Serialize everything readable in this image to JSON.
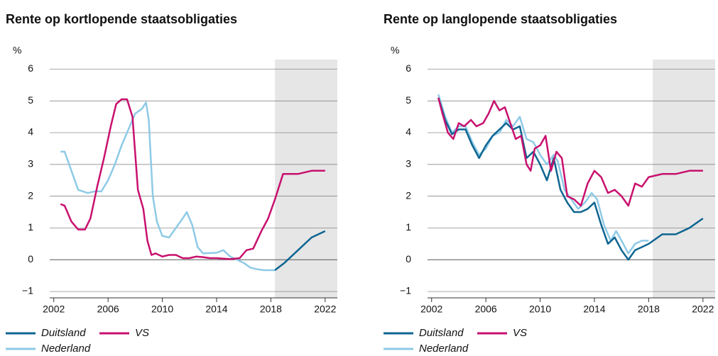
{
  "chart_data": [
    {
      "type": "line",
      "title": "Rente op kortlopende staatsobligaties",
      "y_label": "%",
      "xlim": [
        2001.7,
        2022.9
      ],
      "xticks": [
        2002,
        2006,
        2010,
        2014,
        2018,
        2022
      ],
      "ylim": [
        -1.2,
        6.3
      ],
      "yticks": [
        {
          "value": -1,
          "label": "−1"
        },
        0,
        1,
        2,
        3,
        4,
        5,
        6
      ],
      "grid": true,
      "forecast_region": [
        2018.3,
        2022.9
      ],
      "shade_color": "#e6e6e6",
      "series": [
        {
          "name": "Nederland",
          "color": "#8ecae6",
          "x": [
            2002.5,
            2002.8,
            2003.3,
            2003.8,
            2004.5,
            2005,
            2005.5,
            2006,
            2006.5,
            2007,
            2007.5,
            2008,
            2008.5,
            2008.8,
            2009,
            2009.3,
            2009.6,
            2010,
            2010.5,
            2011,
            2011.5,
            2011.8,
            2012.2,
            2012.6,
            2013,
            2014,
            2014.5,
            2015,
            2015.5,
            2016,
            2016.5,
            2017,
            2017.5,
            2018.3
          ],
          "values": [
            3.4,
            3.4,
            2.8,
            2.2,
            2.1,
            2.15,
            2.15,
            2.5,
            3.0,
            3.6,
            4.1,
            4.6,
            4.75,
            4.95,
            4.4,
            2.0,
            1.2,
            0.75,
            0.7,
            1.0,
            1.3,
            1.5,
            1.1,
            0.4,
            0.2,
            0.22,
            0.3,
            0.1,
            0.0,
            -0.1,
            -0.25,
            -0.3,
            -0.33,
            -0.33
          ]
        },
        {
          "name": "Duitsland",
          "color": "#0e6591",
          "x": [
            2018.3,
            2019,
            2020,
            2021,
            2022
          ],
          "values": [
            -0.33,
            -0.1,
            0.3,
            0.7,
            0.9
          ]
        },
        {
          "name": "VS",
          "color": "#c8106e",
          "x": [
            2002.5,
            2002.8,
            2003.3,
            2003.8,
            2004.3,
            2004.7,
            2005.2,
            2005.7,
            2006.2,
            2006.6,
            2007,
            2007.4,
            2007.8,
            2008.2,
            2008.6,
            2008.9,
            2009.2,
            2009.5,
            2010,
            2010.5,
            2011,
            2011.5,
            2012,
            2012.5,
            2013,
            2013.5,
            2014,
            2015,
            2015.7,
            2016.2,
            2016.7,
            2017.3,
            2017.8,
            2018.3,
            2018.9,
            2020,
            2021,
            2022
          ],
          "values": [
            1.75,
            1.7,
            1.2,
            0.95,
            0.95,
            1.3,
            2.3,
            3.2,
            4.2,
            4.9,
            5.05,
            5.05,
            4.5,
            2.2,
            1.6,
            0.6,
            0.15,
            0.2,
            0.1,
            0.15,
            0.15,
            0.05,
            0.05,
            0.1,
            0.08,
            0.05,
            0.05,
            0.02,
            0.05,
            0.3,
            0.35,
            0.9,
            1.3,
            1.9,
            2.7,
            2.7,
            2.8,
            2.8
          ]
        }
      ]
    },
    {
      "type": "line",
      "title": "Rente op langlopende staatsobligaties",
      "y_label": "%",
      "xlim": [
        2001.7,
        2022.9
      ],
      "xticks": [
        2002,
        2006,
        2010,
        2014,
        2018,
        2022
      ],
      "ylim": [
        -1.2,
        6.3
      ],
      "yticks": [
        {
          "value": -1,
          "label": "−1"
        },
        0,
        1,
        2,
        3,
        4,
        5,
        6
      ],
      "grid": true,
      "forecast_region": [
        2018.3,
        2022.9
      ],
      "shade_color": "#e6e6e6",
      "series": [
        {
          "name": "Nederland",
          "color": "#8ecae6",
          "x": [
            2002.5,
            2003,
            2003.5,
            2004,
            2004.5,
            2005,
            2005.5,
            2006,
            2006.5,
            2007,
            2007.5,
            2008,
            2008.5,
            2009,
            2009.5,
            2010,
            2010.5,
            2011,
            2011.3,
            2011.8,
            2012.3,
            2012.8,
            2013.3,
            2013.8,
            2014.2,
            2014.7,
            2015.2,
            2015.6,
            2016,
            2016.5,
            2017,
            2017.5,
            2018
          ],
          "values": [
            5.2,
            4.5,
            4.0,
            4.2,
            4.2,
            3.7,
            3.3,
            3.5,
            3.9,
            4.0,
            4.4,
            4.2,
            4.5,
            3.8,
            3.7,
            3.3,
            3.0,
            3.3,
            3.1,
            2.2,
            1.9,
            1.6,
            1.8,
            2.1,
            1.9,
            1.1,
            0.6,
            0.9,
            0.6,
            0.2,
            0.5,
            0.6,
            0.6
          ]
        },
        {
          "name": "Duitsland",
          "color": "#0e6591",
          "x": [
            2002.5,
            2003,
            2003.5,
            2004,
            2004.5,
            2005,
            2005.5,
            2006,
            2006.5,
            2007,
            2007.5,
            2008,
            2008.5,
            2009,
            2009.5,
            2010,
            2010.5,
            2011,
            2011.5,
            2012,
            2012.5,
            2013,
            2013.5,
            2014,
            2014.5,
            2015,
            2015.5,
            2016,
            2016.5,
            2017,
            2017.5,
            2018,
            2019,
            2020,
            2021,
            2022
          ],
          "values": [
            5.1,
            4.4,
            3.95,
            4.1,
            4.1,
            3.6,
            3.2,
            3.6,
            3.9,
            4.1,
            4.3,
            4.1,
            4.2,
            3.2,
            3.4,
            3.0,
            2.5,
            3.2,
            2.2,
            1.8,
            1.5,
            1.5,
            1.6,
            1.8,
            1.1,
            0.5,
            0.7,
            0.3,
            0.0,
            0.3,
            0.4,
            0.5,
            0.8,
            0.8,
            1.0,
            1.3
          ]
        },
        {
          "name": "VS",
          "color": "#c8106e",
          "x": [
            2002.5,
            2002.8,
            2003.2,
            2003.6,
            2004,
            2004.4,
            2004.9,
            2005.3,
            2005.8,
            2006.2,
            2006.6,
            2007,
            2007.4,
            2007.8,
            2008.2,
            2008.6,
            2009,
            2009.3,
            2009.6,
            2010,
            2010.4,
            2010.8,
            2011.2,
            2011.6,
            2012,
            2012.5,
            2013,
            2013.5,
            2014,
            2014.5,
            2015,
            2015.5,
            2016,
            2016.5,
            2017,
            2017.5,
            2018,
            2019,
            2020,
            2021,
            2022
          ],
          "values": [
            5.1,
            4.6,
            4.0,
            3.8,
            4.3,
            4.2,
            4.4,
            4.2,
            4.3,
            4.6,
            5.0,
            4.7,
            4.8,
            4.3,
            3.8,
            3.9,
            3.0,
            2.8,
            3.5,
            3.6,
            3.9,
            2.8,
            3.4,
            3.2,
            2.0,
            1.9,
            1.7,
            2.4,
            2.8,
            2.6,
            2.1,
            2.2,
            2.0,
            1.7,
            2.4,
            2.3,
            2.6,
            2.7,
            2.7,
            2.8,
            2.8
          ]
        }
      ]
    }
  ]
}
